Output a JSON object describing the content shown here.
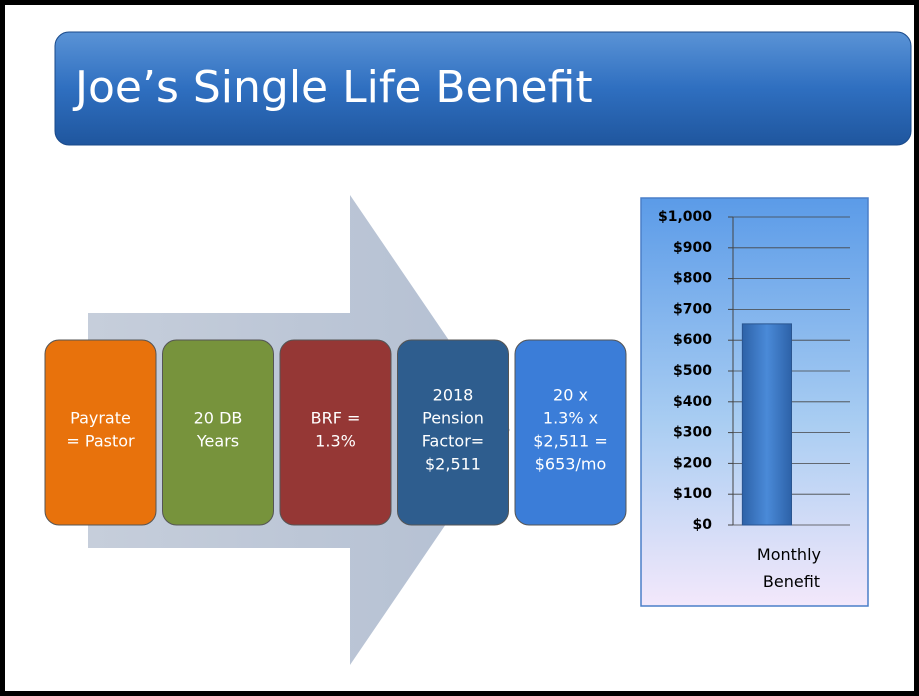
{
  "title": "Joe’s Single Life Benefit",
  "boxes": [
    [
      "Payrate",
      "= Pastor"
    ],
    [
      "20 DB",
      "Years"
    ],
    [
      "BRF =",
      "1.3%"
    ],
    [
      "2018",
      "Pension",
      "Factor=",
      "$2,511"
    ],
    [
      "20 x",
      "1.3% x",
      "$2,511 =",
      "$653/mo"
    ]
  ],
  "chart_data": {
    "type": "bar",
    "categories": [
      "Monthly Benefit"
    ],
    "values": [
      653
    ],
    "color": "#3a78c8",
    "ylim": [
      0,
      1000
    ],
    "yticks": [
      {
        "value": 0,
        "label": "$0"
      },
      {
        "value": 100,
        "label": "$100"
      },
      {
        "value": 200,
        "label": "$200"
      },
      {
        "value": 300,
        "label": "$300"
      },
      {
        "value": 400,
        "label": "$400"
      },
      {
        "value": 500,
        "label": "$500"
      },
      {
        "value": 600,
        "label": "$600"
      },
      {
        "value": 700,
        "label": "$700"
      },
      {
        "value": 800,
        "label": "$800"
      },
      {
        "value": 900,
        "label": "$900"
      },
      {
        "value": 1000,
        "label": "$1,000"
      }
    ],
    "grid": true
  }
}
